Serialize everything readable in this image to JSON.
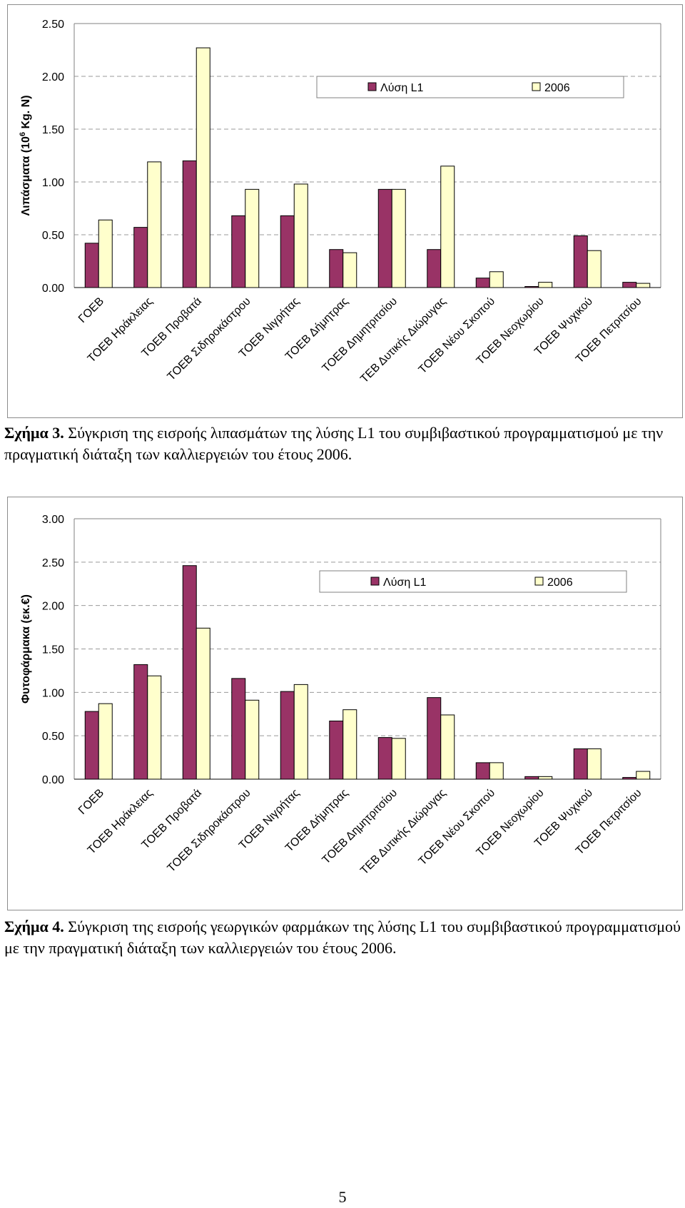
{
  "colors": {
    "series1": "#993366",
    "series2": "#ffffcc",
    "grid": "#999999",
    "border": "#000000"
  },
  "chart_data": [
    {
      "type": "bar",
      "title": "",
      "ylabel": "Λιπάσματα (10^6 Kg. N)",
      "ylabel_prefix": "Λιπάσματα  (10",
      "ylabel_sup": "6",
      "ylabel_suffix": " Kg. N)",
      "xlabel": "",
      "ylim": [
        0,
        2.5
      ],
      "yticks": [
        "0.00",
        "0.50",
        "1.00",
        "1.50",
        "2.00",
        "2.50"
      ],
      "grid": true,
      "legend_position": "top-right",
      "categories": [
        "ΓΟΕΒ",
        "ΤΟΕΒ Ηράκλειας",
        "ΤΟΕΒ Προβατά",
        "ΤΟΕΒ Σιδηροκάστρου",
        "ΤΟΕΒ Νιγρήτας",
        "ΤΟΕΒ Δήμητρας",
        "ΤΟΕΒ Δημητριτσίου",
        "ΤΕΒ Δυτικής Διώρυγας",
        "ΤΟΕΒ Νέου Σκοπού",
        "ΤΟΕΒ Νεοχωρίου",
        "ΤΟΕΒ Ψυχικού",
        "ΤΟΕΒ Πετριτσίου"
      ],
      "series": [
        {
          "name": "Λύση L1",
          "values": [
            0.42,
            0.57,
            1.2,
            0.68,
            0.68,
            0.36,
            0.93,
            0.36,
            0.09,
            0.01,
            0.49,
            0.05
          ]
        },
        {
          "name": "2006",
          "values": [
            0.64,
            1.19,
            2.27,
            0.93,
            0.98,
            0.33,
            0.93,
            1.15,
            0.15,
            0.05,
            0.35,
            0.04
          ]
        }
      ]
    },
    {
      "type": "bar",
      "title": "",
      "ylabel": "Φυτοφάρμακα (εκ.€)",
      "xlabel": "",
      "ylim": [
        0,
        3.0
      ],
      "yticks": [
        "0.00",
        "0.50",
        "1.00",
        "1.50",
        "2.00",
        "2.50",
        "3.00"
      ],
      "grid": true,
      "legend_position": "top-right",
      "categories": [
        "ΓΟΕΒ",
        "ΤΟΕΒ Ηράκλειας",
        "ΤΟΕΒ Προβατά",
        "ΤΟΕΒ Σιδηροκάστρου",
        "ΤΟΕΒ Νιγρήτας",
        "ΤΟΕΒ Δήμητρας",
        "ΤΟΕΒ Δημητριτσίου",
        "ΤΕΒ Δυτικής Διώρυγας",
        "ΤΟΕΒ Νέου Σκοπού",
        "ΤΟΕΒ Νεοχωρίου",
        "ΤΟΕΒ Ψυχικού",
        "ΤΟΕΒ Πετριτσίου"
      ],
      "series": [
        {
          "name": "Λύση L1",
          "values": [
            0.78,
            1.32,
            2.46,
            1.16,
            1.01,
            0.67,
            0.48,
            0.94,
            0.19,
            0.03,
            0.35,
            0.02
          ]
        },
        {
          "name": "2006",
          "values": [
            0.87,
            1.19,
            1.74,
            0.91,
            1.09,
            0.8,
            0.47,
            0.74,
            0.19,
            0.03,
            0.35,
            0.09
          ]
        }
      ]
    }
  ],
  "captions": [
    {
      "label": "Σχήμα 3.",
      "text": " Σύγκριση της εισροής λιπασμάτων της λύσης L1 του συμβιβαστικού προγραμματισμού με την πραγματική διάταξη των καλλιεργειών του έτους 2006."
    },
    {
      "label": "Σχήμα 4.",
      "text": " Σύγκριση της εισροής γεωργικών φαρμάκων της λύσης L1 του συμβιβαστικού προγραμματισμού με την πραγματική διάταξη των καλλιεργειών του έτους 2006."
    }
  ],
  "page_number": "5"
}
